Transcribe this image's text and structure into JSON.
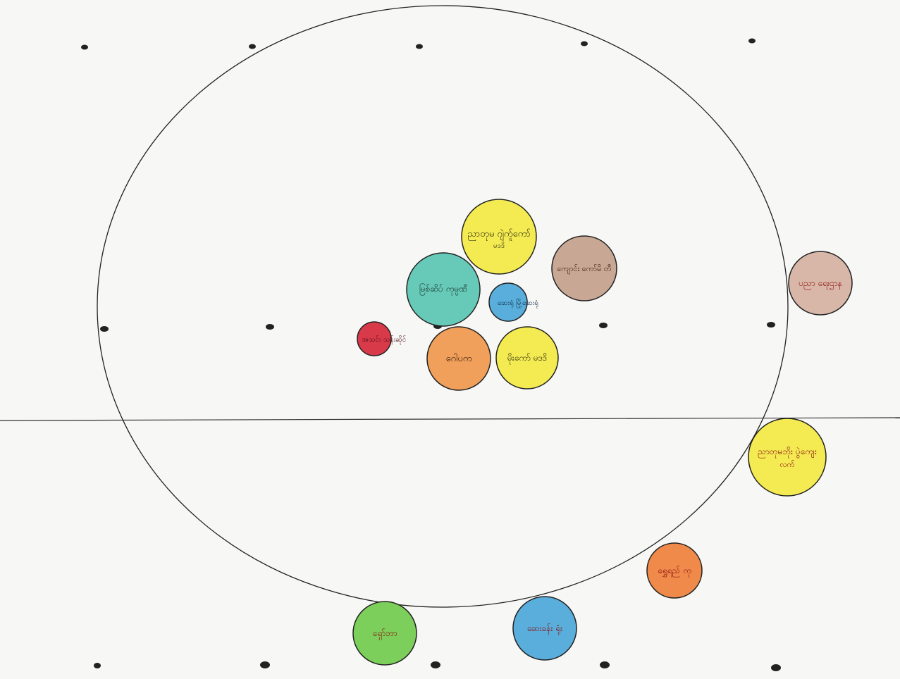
{
  "diagram": {
    "type": "venn-style stakeholder diagram",
    "paper_color": "#f7f7f6",
    "line_color": "#222222",
    "ink_color": "#8a1010",
    "nodes": [
      {
        "id": "n1",
        "label": "ညာတုမ ဂျဲက်ူကော် မဒဒိ",
        "fill": "#f4ea52",
        "text_color": "#3a3a10"
      },
      {
        "id": "n2",
        "label": "ကျောင်း ကော်မိ တီ",
        "fill": "#c9a795",
        "text_color": "#3a2010"
      },
      {
        "id": "n3",
        "label": "မြစ်ဆိပ် ကုမ္ပဏီ",
        "fill": "#67c9b8",
        "text_color": "#1a3a30"
      },
      {
        "id": "n4",
        "label": "ဆေးရုံ မြို့ဆေးရုံ",
        "fill": "#5aaedc",
        "text_color": "#10304a"
      },
      {
        "id": "n5",
        "label": "အသင်း သန်းဆိုင်",
        "fill": "#d93a4a",
        "text_color": "#4a0a10"
      },
      {
        "id": "n6",
        "label": "ဂေါပက",
        "fill": "#f0a05a",
        "text_color": "#3a2010"
      },
      {
        "id": "n7",
        "label": "မိုးကော် မဒဒိ",
        "fill": "#f4ea52",
        "text_color": "#3a3a10"
      },
      {
        "id": "n8",
        "label": "ပညာ ရေးဌာန",
        "fill": "#d9b7a8",
        "text_color": "#8a1010"
      },
      {
        "id": "n9",
        "label": "ညာတုမဘိုး ပွဲကျေး လက်",
        "fill": "#f4ea52",
        "text_color": "#8a1010"
      },
      {
        "id": "n10",
        "label": "ရွှေရည် ကု",
        "fill": "#f08a4a",
        "text_color": "#8a1010"
      },
      {
        "id": "n11",
        "label": "ဆေးခန်း ရုံး",
        "fill": "#5aaedc",
        "text_color": "#8a1010"
      },
      {
        "id": "n12",
        "label": "ရှော်ဘာ",
        "fill": "#7ccf5a",
        "text_color": "#8a1010"
      }
    ]
  }
}
